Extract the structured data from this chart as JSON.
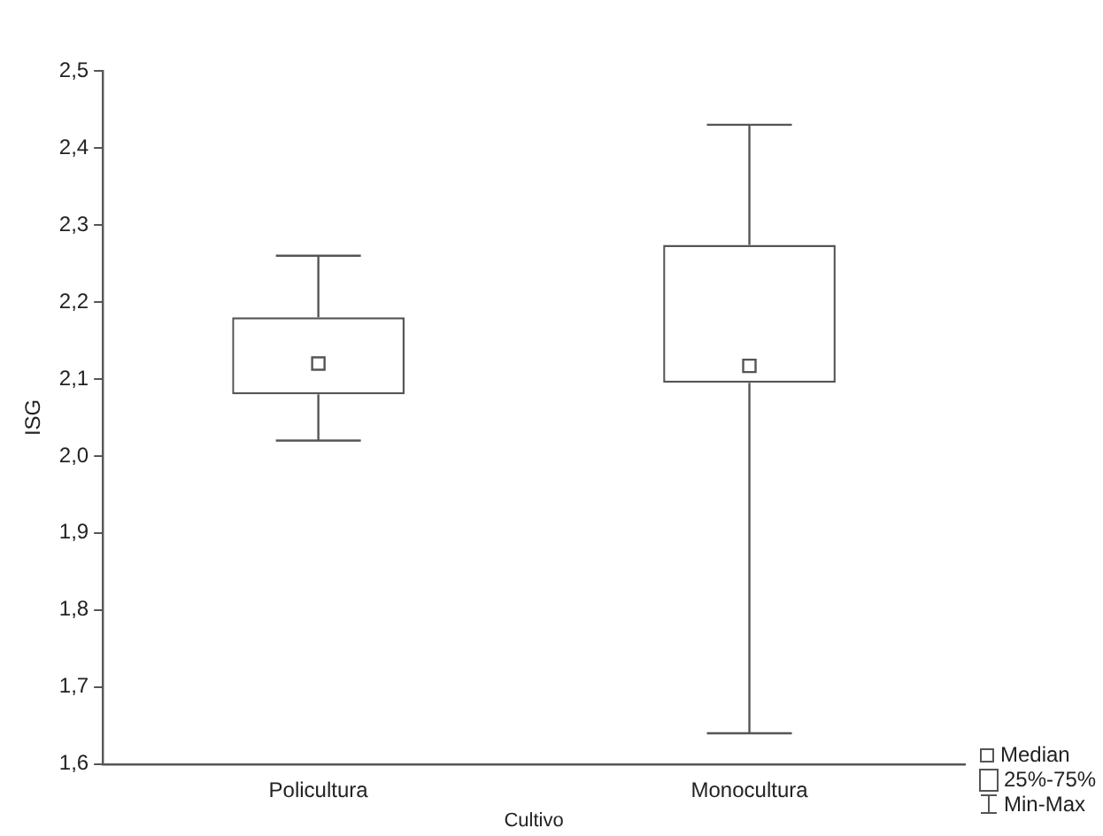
{
  "chart_data": {
    "type": "box",
    "xlabel": "Cultivo",
    "ylabel": "ISG",
    "categories": [
      "Policultura",
      "Monocultura"
    ],
    "boxes": [
      {
        "low": 2.02,
        "q1": 2.08,
        "median": 2.12,
        "q3": 2.18,
        "high": 2.26
      },
      {
        "low": 1.64,
        "q1": 2.095,
        "median": 2.117,
        "q3": 2.274,
        "high": 2.43
      }
    ],
    "ylim": [
      1.6,
      2.5
    ],
    "yticks": [
      {
        "value": 1.6,
        "label": "1,6"
      },
      {
        "value": 1.7,
        "label": "1,7"
      },
      {
        "value": 1.8,
        "label": "1,8"
      },
      {
        "value": 1.9,
        "label": "1,9"
      },
      {
        "value": 2.0,
        "label": "2,0"
      },
      {
        "value": 2.1,
        "label": "2,1"
      },
      {
        "value": 2.2,
        "label": "2,2"
      },
      {
        "value": 2.3,
        "label": "2,3"
      },
      {
        "value": 2.4,
        "label": "2,4"
      },
      {
        "value": 2.5,
        "label": "2,5"
      }
    ],
    "grid": false,
    "annotations": [
      "Median",
      "25%-75%",
      "Min-Max"
    ]
  }
}
